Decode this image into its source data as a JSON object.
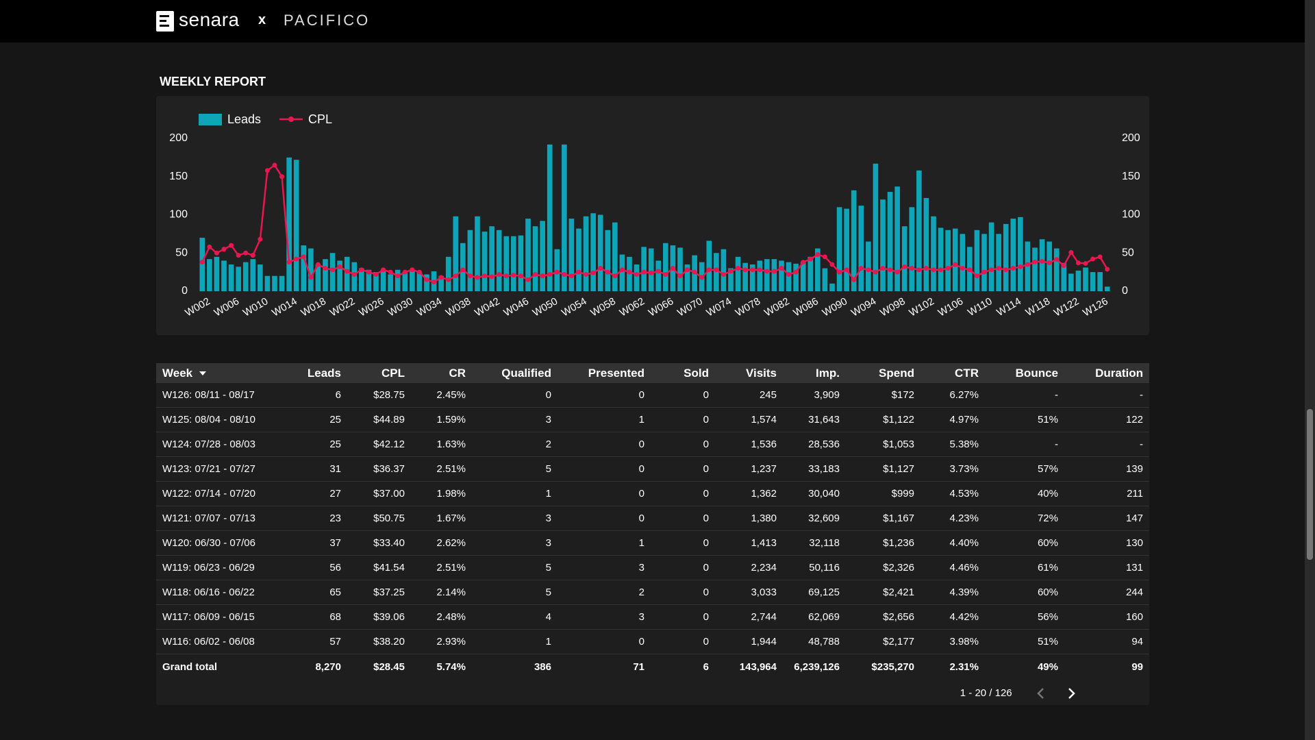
{
  "header": {
    "brand": "senara",
    "separator": "x",
    "partner": "PACIFICO"
  },
  "report_title": "WEEKLY REPORT",
  "chart_data": {
    "type": "bar",
    "categories": [
      null,
      "W002",
      null,
      null,
      null,
      "W006",
      null,
      null,
      null,
      "W010",
      null,
      null,
      null,
      "W014",
      null,
      null,
      null,
      "W018",
      null,
      null,
      null,
      "W022",
      null,
      null,
      null,
      "W026",
      null,
      null,
      null,
      "W030",
      null,
      null,
      null,
      "W034",
      null,
      null,
      null,
      "W038",
      null,
      null,
      null,
      "W042",
      null,
      null,
      null,
      "W046",
      null,
      null,
      null,
      "W050",
      null,
      null,
      null,
      "W054",
      null,
      null,
      null,
      "W058",
      null,
      null,
      null,
      "W062",
      null,
      null,
      null,
      "W066",
      null,
      null,
      null,
      "W070",
      null,
      null,
      null,
      "W074",
      null,
      null,
      null,
      "W078",
      null,
      null,
      null,
      "W082",
      null,
      null,
      null,
      "W086",
      null,
      null,
      null,
      "W090",
      null,
      null,
      null,
      "W094",
      null,
      null,
      null,
      "W098",
      null,
      null,
      null,
      "W102",
      null,
      null,
      null,
      "W106",
      null,
      null,
      null,
      "W110",
      null,
      null,
      null,
      "W114",
      null,
      null,
      null,
      "W118",
      null,
      null,
      null,
      "W122",
      null,
      null,
      null,
      "W126"
    ],
    "series": [
      {
        "name": "Leads",
        "type": "bar",
        "color": "#0fa5b8",
        "values": [
          70,
          42,
          45,
          40,
          35,
          32,
          38,
          42,
          35,
          20,
          20,
          20,
          175,
          172,
          60,
          56,
          35,
          42,
          50,
          40,
          45,
          38,
          30,
          28,
          25,
          28,
          22,
          28,
          25,
          28,
          25,
          22,
          26,
          20,
          45,
          98,
          63,
          80,
          98,
          78,
          85,
          80,
          72,
          72,
          73,
          95,
          85,
          92,
          192,
          55,
          192,
          95,
          82,
          98,
          102,
          100,
          80,
          90,
          48,
          45,
          35,
          58,
          56,
          40,
          63,
          60,
          57,
          35,
          47,
          38,
          66,
          50,
          55,
          30,
          45,
          37,
          35,
          40,
          42,
          42,
          40,
          38,
          36,
          38,
          45,
          56,
          30,
          10,
          110,
          108,
          132,
          112,
          65,
          167,
          120,
          130,
          137,
          85,
          110,
          158,
          122,
          98,
          83,
          80,
          82,
          75,
          58,
          80,
          75,
          90,
          75,
          88,
          95,
          97,
          65,
          57,
          68,
          65,
          56,
          37,
          23,
          27,
          31,
          25,
          25,
          6
        ]
      },
      {
        "name": "CPL",
        "type": "line",
        "axis": "y2",
        "color": "#e8174f",
        "values": [
          38,
          58,
          50,
          55,
          60,
          47,
          50,
          47,
          68,
          158,
          165,
          150,
          38,
          42,
          45,
          18,
          35,
          30,
          28,
          32,
          26,
          22,
          28,
          25,
          22,
          28,
          25,
          20,
          25,
          28,
          25,
          15,
          12,
          18,
          15,
          20,
          28,
          20,
          18,
          20,
          19,
          22,
          20,
          21,
          20,
          15,
          22,
          20,
          22,
          25,
          22,
          20,
          25,
          22,
          24,
          30,
          25,
          20,
          28,
          25,
          22,
          25,
          24,
          26,
          22,
          30,
          20,
          28,
          25,
          18,
          28,
          28,
          22,
          26,
          30,
          28,
          28,
          28,
          26,
          26,
          30,
          22,
          25,
          38,
          42,
          48,
          45,
          35,
          25,
          28,
          15,
          30,
          28,
          25,
          30,
          28,
          25,
          32,
          30,
          28,
          30,
          28,
          28,
          30,
          35,
          30,
          28,
          20,
          25,
          28,
          30,
          28,
          30,
          32,
          35,
          38.2,
          39.06,
          37.25,
          41.54,
          33.4,
          50.75,
          37,
          36.37,
          42.12,
          44.89,
          28.75
        ]
      }
    ],
    "ylim": [
      0,
      200
    ],
    "yticks": [
      0,
      50,
      100,
      150,
      200
    ],
    "y2lim": [
      0,
      200
    ],
    "y2ticks": [
      0,
      50,
      100,
      150,
      200
    ],
    "grid": false,
    "legend": "top-left"
  },
  "table": {
    "columns": [
      "Week",
      "Leads",
      "CPL",
      "CR",
      "Qualified",
      "Presented",
      "Sold",
      "Visits",
      "Imp.",
      "Spend",
      "CTR",
      "Bounce",
      "Duration"
    ],
    "rows": [
      [
        "W126: 08/11 - 08/17",
        "6",
        "$28.75",
        "2.45%",
        "0",
        "0",
        "0",
        "245",
        "3,909",
        "$172",
        "6.27%",
        "-",
        "-"
      ],
      [
        "W125: 08/04 - 08/10",
        "25",
        "$44.89",
        "1.59%",
        "3",
        "1",
        "0",
        "1,574",
        "31,643",
        "$1,122",
        "4.97%",
        "51%",
        "122"
      ],
      [
        "W124: 07/28 - 08/03",
        "25",
        "$42.12",
        "1.63%",
        "2",
        "0",
        "0",
        "1,536",
        "28,536",
        "$1,053",
        "5.38%",
        "-",
        "-"
      ],
      [
        "W123: 07/21 - 07/27",
        "31",
        "$36.37",
        "2.51%",
        "5",
        "0",
        "0",
        "1,237",
        "33,183",
        "$1,127",
        "3.73%",
        "57%",
        "139"
      ],
      [
        "W122: 07/14 - 07/20",
        "27",
        "$37.00",
        "1.98%",
        "1",
        "0",
        "0",
        "1,362",
        "30,040",
        "$999",
        "4.53%",
        "40%",
        "211"
      ],
      [
        "W121: 07/07 - 07/13",
        "23",
        "$50.75",
        "1.67%",
        "3",
        "0",
        "0",
        "1,380",
        "32,609",
        "$1,167",
        "4.23%",
        "72%",
        "147"
      ],
      [
        "W120: 06/30 - 07/06",
        "37",
        "$33.40",
        "2.62%",
        "3",
        "1",
        "0",
        "1,413",
        "32,118",
        "$1,236",
        "4.40%",
        "60%",
        "130"
      ],
      [
        "W119: 06/23 - 06/29",
        "56",
        "$41.54",
        "2.51%",
        "5",
        "3",
        "0",
        "2,234",
        "50,116",
        "$2,326",
        "4.46%",
        "61%",
        "131"
      ],
      [
        "W118: 06/16 - 06/22",
        "65",
        "$37.25",
        "2.14%",
        "5",
        "2",
        "0",
        "3,033",
        "69,125",
        "$2,421",
        "4.39%",
        "60%",
        "244"
      ],
      [
        "W117: 06/09 - 06/15",
        "68",
        "$39.06",
        "2.48%",
        "4",
        "3",
        "0",
        "2,744",
        "62,069",
        "$2,656",
        "4.42%",
        "56%",
        "160"
      ],
      [
        "W116: 06/02 - 06/08",
        "57",
        "$38.20",
        "2.93%",
        "1",
        "0",
        "0",
        "1,944",
        "48,788",
        "$2,177",
        "3.98%",
        "51%",
        "94"
      ]
    ],
    "total": [
      "Grand total",
      "8,270",
      "$28.45",
      "5.74%",
      "386",
      "71",
      "6",
      "143,964",
      "6,239,126",
      "$235,270",
      "2.31%",
      "49%",
      "99"
    ]
  },
  "pagination": "1 - 20 / 126"
}
